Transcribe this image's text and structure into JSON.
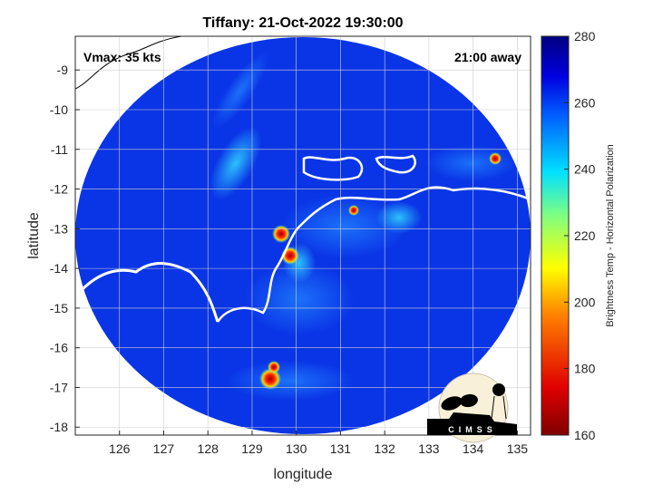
{
  "title": "Tiffany: 21-Oct-2022 19:30:00",
  "annotations": {
    "vmax": "Vmax: 35 kts",
    "away": "21:00 away"
  },
  "axes": {
    "xlabel": "longitude",
    "ylabel": "latitude",
    "xticks": [
      "126",
      "127",
      "128",
      "129",
      "130",
      "131",
      "132",
      "133",
      "134",
      "135"
    ],
    "yticks": [
      "-9",
      "-10",
      "-11",
      "-12",
      "-13",
      "-14",
      "-15",
      "-16",
      "-17",
      "-18"
    ],
    "xlim": [
      125.0,
      135.3
    ],
    "ylim": [
      -18.2,
      -8.15
    ],
    "grid": true
  },
  "colorbar": {
    "label": "Brightness Temp - Horizontal Polarization",
    "ticks": [
      "280",
      "260",
      "240",
      "220",
      "200",
      "180",
      "160"
    ],
    "range": [
      160,
      280
    ],
    "colormap": "jet"
  },
  "logo": {
    "text": "CIMSS"
  },
  "colors": {
    "background_tb": "#0a35e6",
    "coastline_in_swath": "#ffffff",
    "coastline_outside": "#000000"
  }
}
